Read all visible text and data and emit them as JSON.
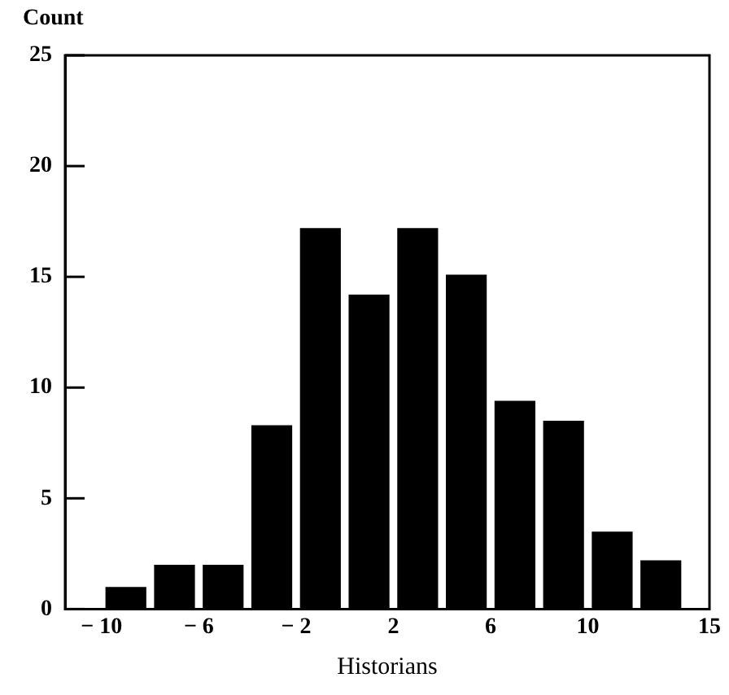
{
  "chart_data": {
    "type": "histogram",
    "xlabel": "Historians",
    "ylabel": "Count",
    "bins": [
      -10,
      -8,
      -6,
      -4,
      -2,
      0,
      2,
      4,
      6,
      8,
      10,
      12,
      14
    ],
    "values": [
      1,
      2,
      2,
      8.3,
      17.2,
      14.2,
      17.2,
      15.1,
      9.4,
      8.5,
      3.5,
      2.2
    ],
    "color": "#000000",
    "xlim": [
      -11.5,
      15
    ],
    "xticks": [
      {
        "value": -10,
        "label": "− 10"
      },
      {
        "value": -6,
        "label": "− 6"
      },
      {
        "value": -2,
        "label": "− 2"
      },
      2,
      6,
      10,
      15
    ],
    "ylim": [
      0,
      25
    ],
    "yticks": [
      0,
      5,
      10,
      15,
      20,
      25
    ],
    "grid": false,
    "legend": false
  }
}
